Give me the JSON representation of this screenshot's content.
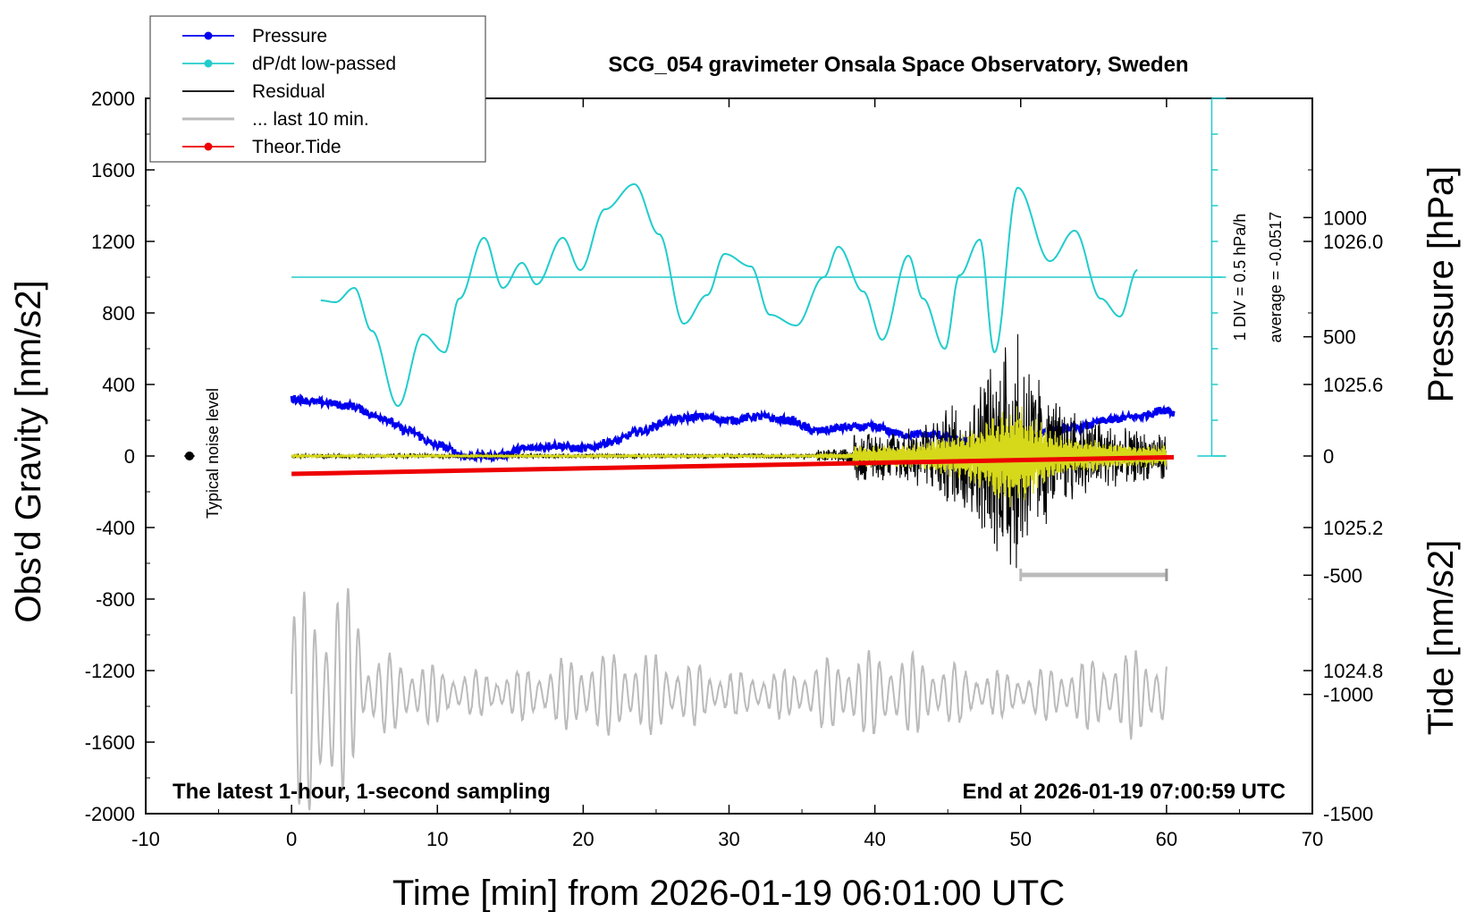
{
  "chart_data": {
    "type": "line",
    "title": "SCG_054 gravimeter Onsala Space Observatory, Sweden",
    "xlabel": "Time [min] from 2026-01-19 06:01:00 UTC",
    "ylabel_left": "Obs'd Gravity [nm/s2]",
    "ylabel_right_top": "Pressure [hPa]",
    "ylabel_right_bottom": "Tide [nm/s2]",
    "xlim": [
      -10,
      70
    ],
    "ylim_left": [
      -2000,
      2000
    ],
    "ylim_pressure": [
      1024.4,
      1026.4
    ],
    "ylim_tide": [
      -1500,
      1500
    ],
    "x_ticks": [
      "-10",
      "0",
      "10",
      "20",
      "30",
      "40",
      "50",
      "60",
      "70"
    ],
    "y_left_ticks": [
      "2000",
      "1600",
      "1200",
      "800",
      "400",
      "0",
      "-400",
      "-800",
      "-1200",
      "-1600",
      "-2000"
    ],
    "pressure_ticks": [
      "1026.0",
      "1025.6",
      "1025.2",
      "1024.8"
    ],
    "tide_ticks": [
      "1000",
      "500",
      "0",
      "-500",
      "-1000",
      "-1500"
    ],
    "legend": [
      {
        "label": "Pressure",
        "color": "#0000ee"
      },
      {
        "label": "dP/dt low-passed",
        "color": "#22cccc"
      },
      {
        "label": "Residual",
        "color": "#000000"
      },
      {
        "label": "... last 10 min.",
        "color": "#bbbbbb"
      },
      {
        "label": "Theor.Tide",
        "color": "#ee0000"
      }
    ],
    "note_left": "The latest 1-hour, 1-second sampling",
    "note_right": "End at 2026-01-19 07:00:59 UTC",
    "noise_label": "Typical noise level",
    "dpdt_scale": "1 DIV = 0.5 hPa/h",
    "dpdt_average": "average = -0.0517",
    "series": [
      {
        "name": "Pressure [hPa]",
        "x": [
          0,
          2,
          4,
          6,
          8,
          10,
          12,
          14,
          16,
          18,
          20,
          22,
          24,
          26,
          28,
          30,
          32,
          34,
          36,
          38,
          40,
          42,
          44,
          46,
          48,
          50,
          52,
          54,
          56,
          58,
          60,
          60.5
        ],
        "values": [
          1025.56,
          1025.55,
          1025.54,
          1025.51,
          1025.47,
          1025.43,
          1025.4,
          1025.4,
          1025.42,
          1025.43,
          1025.42,
          1025.44,
          1025.47,
          1025.5,
          1025.51,
          1025.5,
          1025.51,
          1025.5,
          1025.47,
          1025.48,
          1025.48,
          1025.46,
          1025.46,
          1025.44,
          1025.43,
          1025.44,
          1025.47,
          1025.48,
          1025.5,
          1025.51,
          1025.53,
          1025.52
        ]
      },
      {
        "name": "dP/dt low-passed",
        "x": [
          2,
          3,
          4.3,
          5.5,
          7.3,
          9,
          10.5,
          11.5,
          13.2,
          14.5,
          15.8,
          16.8,
          18.6,
          19.8,
          21.5,
          23.5,
          25.2,
          26.9,
          28.5,
          29.7,
          31.5,
          32.8,
          34.6,
          36.5,
          37.5,
          39.2,
          40.5,
          42.3,
          43.3,
          44.8,
          45.8,
          47.2,
          48.2,
          49.8,
          52,
          53.7,
          55.5,
          56.8,
          58
        ],
        "values": [
          870,
          860,
          940,
          700,
          280,
          680,
          580,
          880,
          1220,
          940,
          1080,
          960,
          1220,
          1040,
          1380,
          1520,
          1240,
          740,
          900,
          1130,
          1060,
          790,
          730,
          1000,
          1170,
          920,
          650,
          1120,
          880,
          600,
          1010,
          1210,
          580,
          1500,
          1090,
          1260,
          880,
          780,
          1040
        ]
      },
      {
        "name": "Residual",
        "x_range": [
          0,
          60
        ],
        "values_range": [
          -800,
          780
        ]
      },
      {
        "name": "... last 10 min.",
        "x_range": [
          0,
          60
        ],
        "values_range": [
          -1900,
          -450
        ]
      },
      {
        "name": "Theor.Tide",
        "x": [
          0,
          60.5
        ],
        "values": [
          -75,
          -5
        ]
      }
    ],
    "noise_level": {
      "x": -7,
      "y": 0
    },
    "last10_bar": {
      "x": [
        50,
        60
      ],
      "y": -665
    }
  }
}
